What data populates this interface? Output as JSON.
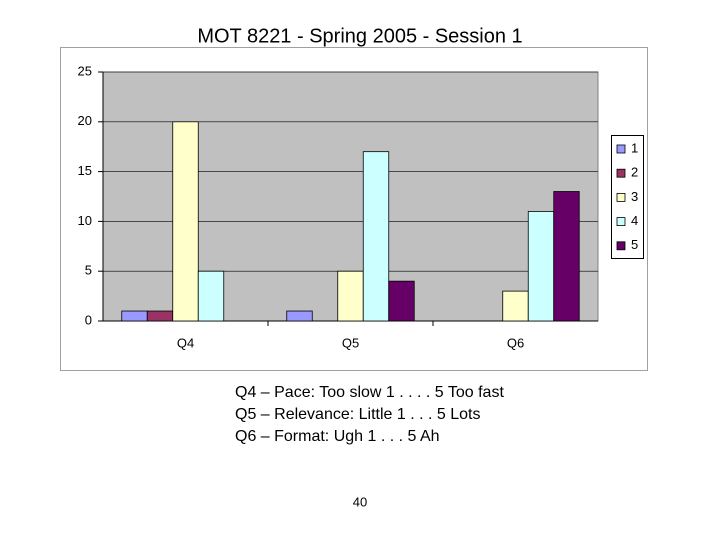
{
  "chart_data": {
    "type": "bar",
    "title": "MOT 8221 - Spring 2005 - Session 1",
    "categories": [
      "Q4",
      "Q5",
      "Q6"
    ],
    "series": [
      {
        "name": "1",
        "color": "#9999ff",
        "values": [
          1,
          1,
          0
        ]
      },
      {
        "name": "2",
        "color": "#993366",
        "values": [
          1,
          0,
          0
        ]
      },
      {
        "name": "3",
        "color": "#ffffcc",
        "values": [
          20,
          5,
          3
        ]
      },
      {
        "name": "4",
        "color": "#ccffff",
        "values": [
          5,
          17,
          11
        ]
      },
      {
        "name": "5",
        "color": "#660066",
        "values": [
          0,
          4,
          13
        ]
      }
    ],
    "ylim": [
      0,
      25
    ],
    "yticks": [
      0,
      5,
      10,
      15,
      20,
      25
    ],
    "grid": true,
    "legend": "right"
  },
  "notes": [
    "Q4 – Pace: Too slow 1 . . . . 5 Too fast",
    "Q5 – Relevance: Little 1 . . . 5 Lots",
    "Q6 – Format: Ugh 1 . . . 5 Ah"
  ],
  "page_number": "40"
}
